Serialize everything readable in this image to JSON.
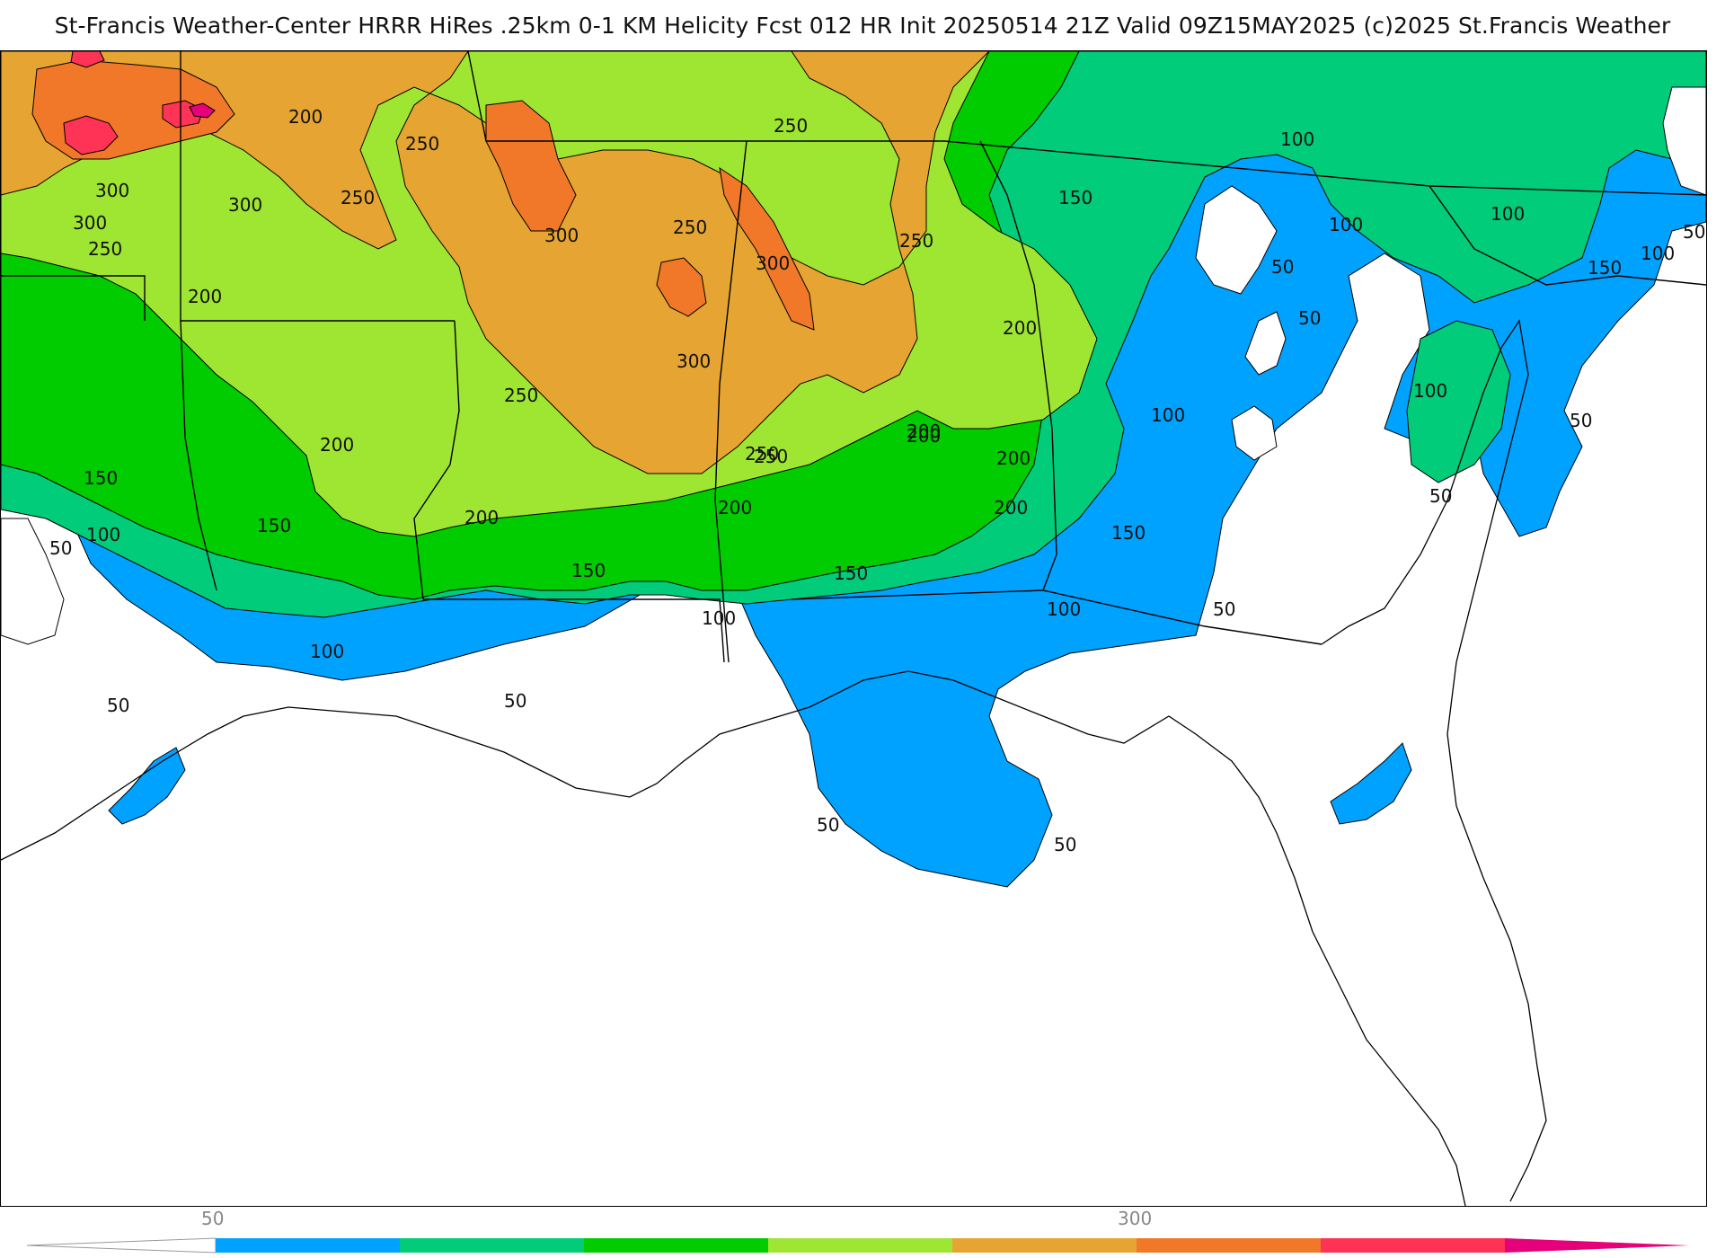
{
  "title": "St-Francis Weather-Center HRRR HiRes .25km 0-1 KM Helicity Fcst 012 HR Init 20250514 21Z  Valid 09Z15MAY2025    (c)2025 St.Francis Weather",
  "map": {
    "variable": "0-1 KM Helicity",
    "model": "HRRR",
    "contour_labels": [
      "200",
      "250",
      "250",
      "300",
      "300",
      "300",
      "250",
      "300",
      "200",
      "250",
      "300",
      "250",
      "250",
      "300",
      "150",
      "100",
      "100",
      "100",
      "50",
      "50",
      "100",
      "150",
      "50",
      "250",
      "200",
      "200",
      "200",
      "250",
      "200",
      "150",
      "100",
      "200",
      "200",
      "100",
      "50",
      "150",
      "150",
      "150",
      "150",
      "100",
      "100",
      "50",
      "100",
      "50",
      "50",
      "50",
      "50",
      "200",
      "50",
      "100",
      "250",
      "200",
      "50"
    ],
    "colors": {
      "background": "#ffffff",
      "band_50_100": "#00a2ff",
      "band_100_150": "#00cc7a",
      "band_150_200": "#00cc00",
      "band_200_250": "#9ee632",
      "band_250_300": "#e6a532",
      "band_300_350": "#f07828",
      "band_350_400": "#ff3355",
      "band_400_plus": "#e6007a",
      "state_lines": "#000000",
      "county_lines": "#b4b4b4"
    }
  },
  "colorbar": {
    "tick_labels": [
      "50",
      "300"
    ],
    "segment_colors": [
      "#00a2ff",
      "#00cc7a",
      "#00cc00",
      "#9ee632",
      "#e6a532",
      "#f07828",
      "#ff3355",
      "#e6007a"
    ]
  }
}
